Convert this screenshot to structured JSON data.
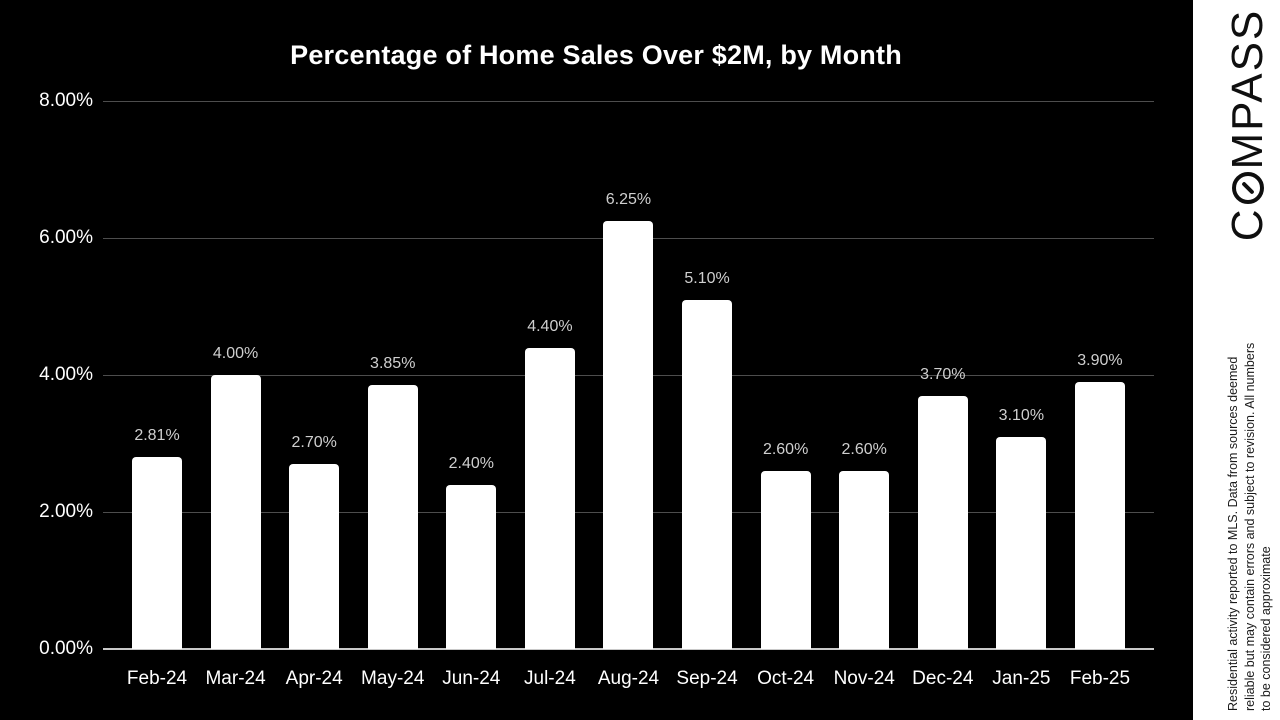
{
  "page": {
    "background": "#000000"
  },
  "chart_data": {
    "type": "bar",
    "title": "Percentage of Home Sales Over $2M, by Month",
    "categories": [
      "Feb-24",
      "Mar-24",
      "Apr-24",
      "May-24",
      "Jun-24",
      "Jul-24",
      "Aug-24",
      "Sep-24",
      "Oct-24",
      "Nov-24",
      "Dec-24",
      "Jan-25",
      "Feb-25"
    ],
    "values": [
      2.81,
      4.0,
      2.7,
      3.85,
      2.4,
      4.4,
      6.25,
      5.1,
      2.6,
      2.6,
      3.7,
      3.1,
      3.9
    ],
    "value_labels": [
      "2.81%",
      "4.00%",
      "2.70%",
      "3.85%",
      "2.40%",
      "4.40%",
      "6.25%",
      "5.10%",
      "2.60%",
      "2.60%",
      "3.70%",
      "3.10%",
      "3.90%"
    ],
    "xlabel": "",
    "ylabel": "",
    "ylim": [
      0,
      8
    ],
    "y_ticks": [
      {
        "value": 8,
        "label": "8.00%"
      },
      {
        "value": 6,
        "label": "6.00%"
      },
      {
        "value": 4,
        "label": "4.00%"
      },
      {
        "value": 2,
        "label": "2.00%"
      },
      {
        "value": 0,
        "label": "0.00%"
      }
    ],
    "grid": true,
    "legend": false,
    "bar_color": "#ffffff",
    "data_label_color": "#cfcfcf",
    "grid_color": "#4d4d4d",
    "axis_line_color": "#c9c9c9",
    "background": "#000000"
  },
  "branding": {
    "logo_text": "COMPASS",
    "logo_first_letter": "C",
    "logo_rest": "MPASS",
    "disclaimer_lines": [
      "Residential activity reported to MLS. Data from sources deemed",
      "reliable but may contain errors and subject to revision. All numbers",
      "to be considered approximate"
    ]
  }
}
